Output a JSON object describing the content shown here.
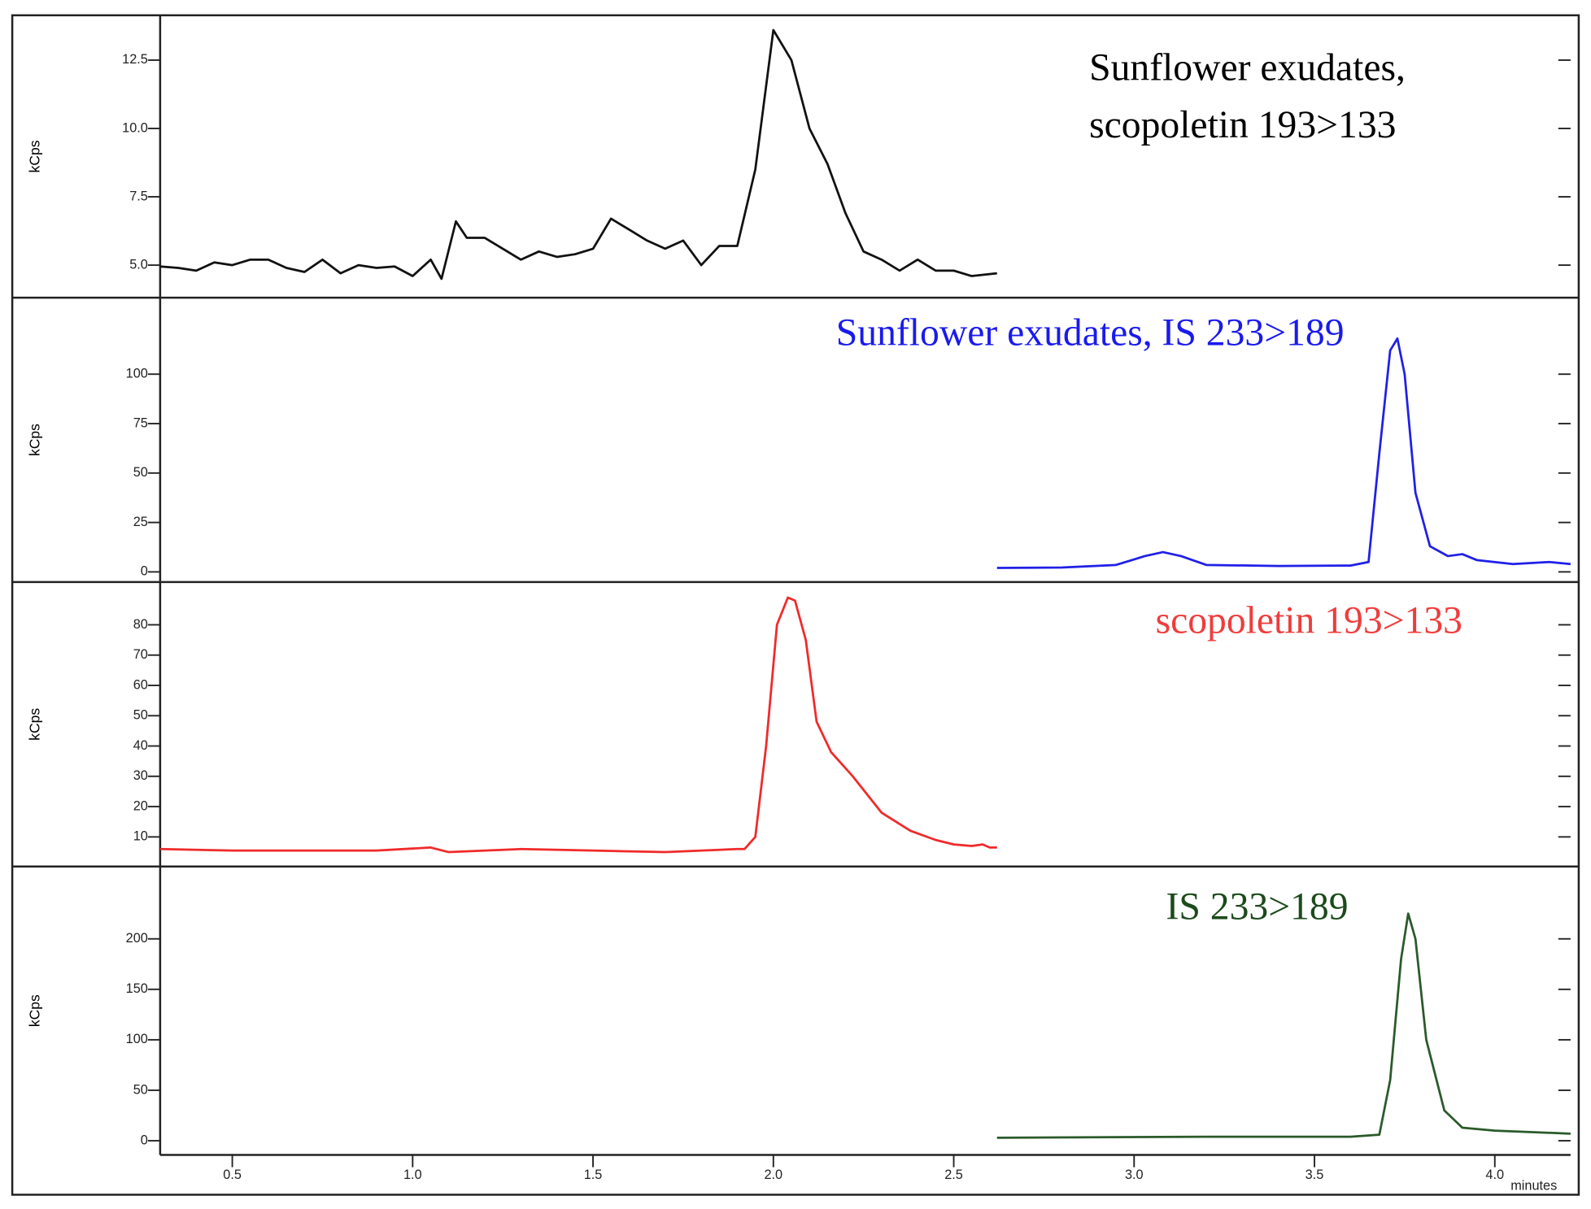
{
  "chart_data": [
    {
      "type": "line",
      "ylabel": "kCps",
      "annotation": [
        "Sunflower exudates,",
        "scopoletin 193>133"
      ],
      "annotation_color": "#000000",
      "color": "#111111",
      "xlim": [
        0.3,
        4.21
      ],
      "ylim": [
        3.81,
        14.14
      ],
      "yticks": [
        {
          "value": 5,
          "label": "5.0"
        },
        7.5,
        {
          "value": 10,
          "label": "10.0"
        },
        12.5
      ],
      "x": [
        0.3,
        0.35,
        0.4,
        0.45,
        0.5,
        0.55,
        0.6,
        0.65,
        0.7,
        0.75,
        0.8,
        0.85,
        0.9,
        0.95,
        1.0,
        1.05,
        1.08,
        1.12,
        1.15,
        1.2,
        1.25,
        1.3,
        1.35,
        1.4,
        1.45,
        1.5,
        1.55,
        1.6,
        1.65,
        1.7,
        1.75,
        1.8,
        1.85,
        1.9,
        1.95,
        2.0,
        2.05,
        2.1,
        2.15,
        2.2,
        2.25,
        2.3,
        2.35,
        2.4,
        2.45,
        2.5,
        2.55,
        2.62
      ],
      "values": [
        4.95,
        4.9,
        4.8,
        5.1,
        5.0,
        5.2,
        5.2,
        4.9,
        4.75,
        5.2,
        4.7,
        5.0,
        4.9,
        4.95,
        4.6,
        5.2,
        4.5,
        6.6,
        6.0,
        6.0,
        5.6,
        5.2,
        5.5,
        5.3,
        5.4,
        5.6,
        6.7,
        6.3,
        5.9,
        5.6,
        5.9,
        5.0,
        5.7,
        5.7,
        8.5,
        13.6,
        12.5,
        10.0,
        8.7,
        6.9,
        5.5,
        5.2,
        4.8,
        5.2,
        4.8,
        4.8,
        4.6,
        4.7
      ]
    },
    {
      "type": "line",
      "ylabel": "kCps",
      "annotation": [
        "Sunflower exudates, IS 233>189"
      ],
      "annotation_color": "#1a1aee",
      "color": "#2020e8",
      "xlim": [
        0.3,
        4.21
      ],
      "ylim": [
        -5.15,
        138.7
      ],
      "yticks": [
        0,
        25,
        50,
        75,
        100
      ],
      "x": [
        2.62,
        2.8,
        2.95,
        3.03,
        3.08,
        3.13,
        3.2,
        3.4,
        3.6,
        3.65,
        3.68,
        3.71,
        3.73,
        3.75,
        3.78,
        3.82,
        3.87,
        3.91,
        3.95,
        4.05,
        4.15,
        4.21
      ],
      "values": [
        2.0,
        2.2,
        3.5,
        8,
        10,
        8,
        3.5,
        3.0,
        3.2,
        5,
        60,
        112,
        118,
        100,
        40,
        13,
        8,
        9,
        6,
        4,
        5,
        4
      ]
    },
    {
      "type": "line",
      "ylabel": "kCps",
      "annotation": [
        "scopoletin 193>133"
      ],
      "annotation_color": "#f03c3c",
      "color": "#f02a2a",
      "xlim": [
        0.3,
        4.21
      ],
      "ylim": [
        0.24,
        94.1
      ],
      "yticks": [
        10,
        20,
        30,
        40,
        50,
        60,
        70,
        80
      ],
      "x": [
        0.3,
        0.5,
        0.7,
        0.9,
        1.05,
        1.1,
        1.3,
        1.5,
        1.7,
        1.9,
        1.92,
        1.95,
        1.98,
        2.01,
        2.04,
        2.06,
        2.09,
        2.12,
        2.16,
        2.22,
        2.3,
        2.38,
        2.45,
        2.5,
        2.55,
        2.58,
        2.6,
        2.62
      ],
      "values": [
        6,
        5.5,
        5.5,
        5.5,
        6.5,
        5,
        6,
        5.5,
        5,
        6,
        6,
        10,
        40,
        80,
        89,
        88,
        75,
        48,
        38,
        30,
        18,
        12,
        9,
        7.5,
        7,
        7.5,
        6.5,
        6.5
      ]
    },
    {
      "type": "line",
      "ylabel": "kCps",
      "annotation": [
        "IS 233>189"
      ],
      "annotation_color": "#1c4a1c",
      "color": "#2a5a2a",
      "xlim": [
        0.3,
        4.21
      ],
      "ylim": [
        -14.1,
        271.7
      ],
      "yticks": [
        0,
        50,
        100,
        150,
        200
      ],
      "xlabel": "minutes",
      "xticks": [
        0.5,
        {
          "value": 1,
          "label": "1.0"
        },
        1.5,
        {
          "value": 2,
          "label": "2.0"
        },
        2.5,
        {
          "value": 3,
          "label": "3.0"
        },
        3.5,
        {
          "value": 4,
          "label": "4.0"
        }
      ],
      "x": [
        2.62,
        3.2,
        3.6,
        3.68,
        3.71,
        3.74,
        3.76,
        3.78,
        3.81,
        3.86,
        3.91,
        4.0,
        4.21
      ],
      "values": [
        3,
        4,
        4,
        6,
        60,
        180,
        225,
        200,
        100,
        30,
        13,
        10,
        7
      ]
    }
  ]
}
